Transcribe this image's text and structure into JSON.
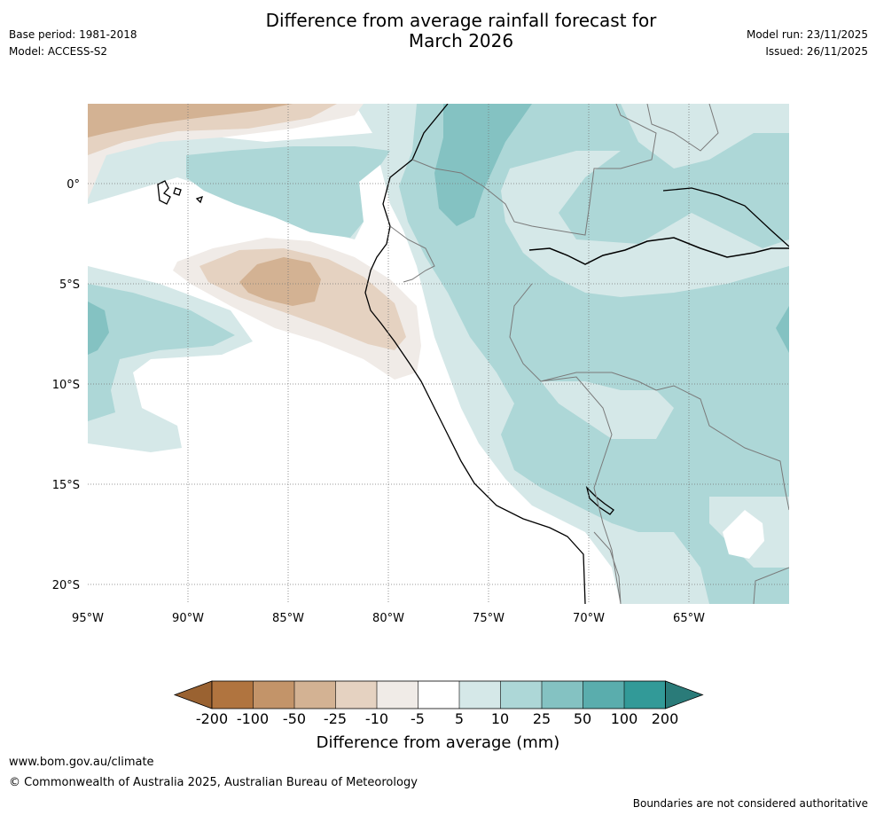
{
  "header": {
    "title_line1": "Difference from average rainfall forecast for",
    "title_line2": "March 2026",
    "base_period": "Base period: 1981-2018",
    "model": "Model: ACCESS-S2",
    "model_run": "Model run: 23/11/2025",
    "issued": "Issued: 26/11/2025"
  },
  "map": {
    "lat_labels": [
      "0°",
      "5°S",
      "10°S",
      "15°S",
      "20°S"
    ],
    "lon_labels": [
      "95°W",
      "90°W",
      "85°W",
      "80°W",
      "75°W",
      "70°W",
      "65°W"
    ],
    "colors": {
      "ocean_bg": "#ffffff",
      "dry_light": "#f0ebe7",
      "dry_mid": "#e5d2c1",
      "dry_strong": "#d3b293",
      "wet_light": "#d5e8e8",
      "wet_mid": "#add7d7",
      "wet_strong": "#84c2c2",
      "coast": "#000000",
      "border": "#7a7a7a",
      "grid": "#777777"
    }
  },
  "colorbar": {
    "labels": [
      "-200",
      "-100",
      "-50",
      "-25",
      "-10",
      "-5",
      "5",
      "10",
      "25",
      "50",
      "100",
      "200"
    ],
    "colors": [
      "#9a6231",
      "#b0743f",
      "#c39469",
      "#d3b293",
      "#e5d2c1",
      "#f0ebe7",
      "#ffffff",
      "#d5e8e8",
      "#add7d7",
      "#84c2c2",
      "#5aadad",
      "#329a98",
      "#2a7b79"
    ],
    "title": "Difference from average (mm)"
  },
  "footer": {
    "url": "www.bom.gov.au/climate",
    "copyright": "© Commonwealth of Australia 2025, Australian Bureau of Meteorology",
    "disclaimer": "Boundaries are not considered authoritative"
  }
}
